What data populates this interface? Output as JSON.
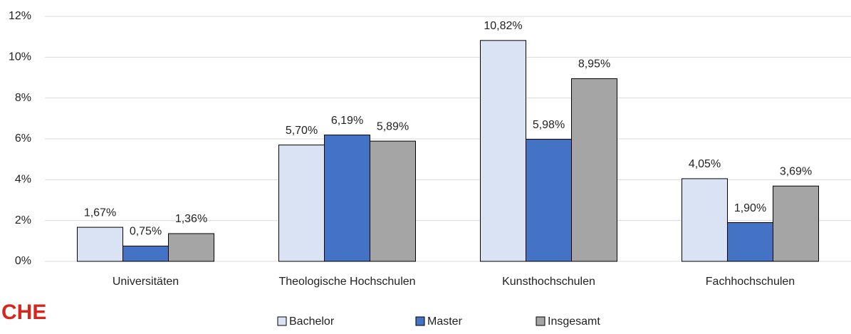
{
  "chart_data": {
    "type": "bar",
    "categories": [
      "Universitäten",
      "Theologische Hochschulen",
      "Kunsthochschulen",
      "Fachhochschulen"
    ],
    "series": [
      {
        "name": "Bachelor",
        "color": "#dae3f3",
        "values": [
          1.67,
          5.7,
          10.82,
          4.05
        ],
        "value_labels": [
          "1,67%",
          "5,70%",
          "10,82%",
          "4,05%"
        ]
      },
      {
        "name": "Master",
        "color": "#4472c4",
        "values": [
          0.75,
          6.19,
          5.98,
          1.9
        ],
        "value_labels": [
          "0,75%",
          "6,19%",
          "5,98%",
          "1,90%"
        ]
      },
      {
        "name": "Insgesamt",
        "color": "#a5a5a5",
        "values": [
          1.36,
          5.89,
          8.95,
          3.69
        ],
        "value_labels": [
          "1,36%",
          "5,89%",
          "8,95%",
          "3,69%"
        ]
      }
    ],
    "ylim": [
      0,
      12
    ],
    "yticks": [
      {
        "value": 0,
        "label": "0%"
      },
      {
        "value": 2,
        "label": "2%"
      },
      {
        "value": 4,
        "label": "4%"
      },
      {
        "value": 6,
        "label": "6%"
      },
      {
        "value": 8,
        "label": "8%"
      },
      {
        "value": 10,
        "label": "10%"
      },
      {
        "value": 12,
        "label": "12%"
      }
    ],
    "grid": true,
    "legend": "bottom"
  },
  "logo": {
    "text": "CHE"
  }
}
